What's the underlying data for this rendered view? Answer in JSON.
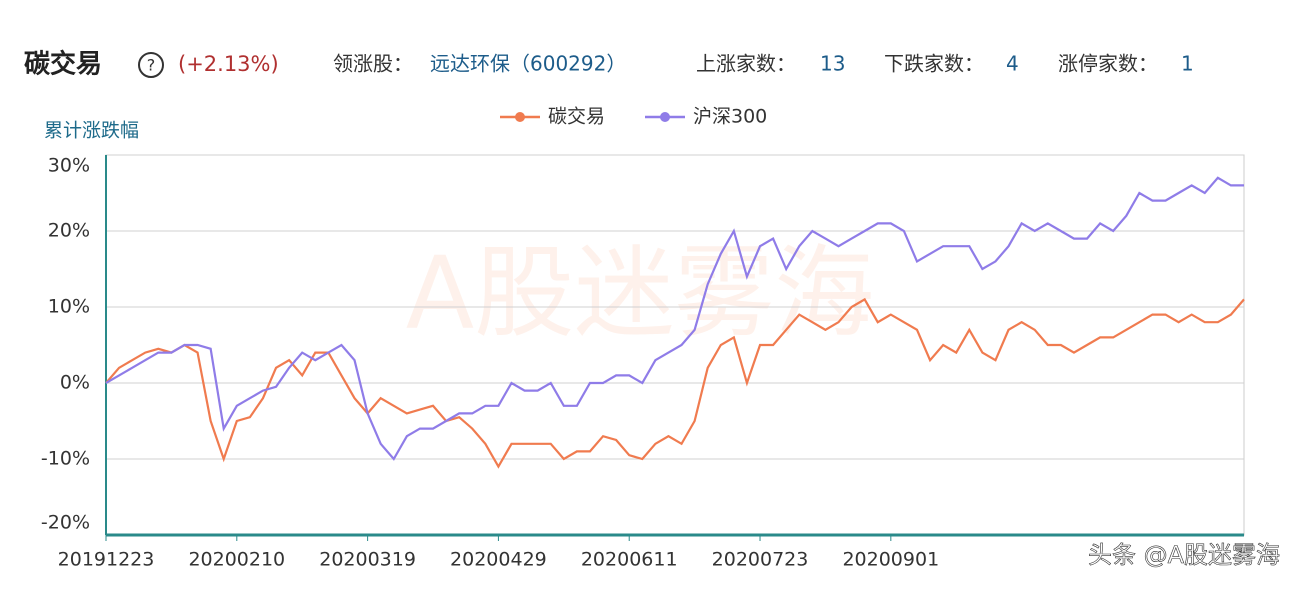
{
  "chart_data": {
    "type": "line",
    "title": "碳交易",
    "help": "?",
    "change": "(+2.13%)",
    "leader_label": "领涨股：",
    "leader": "远达环保（600292）",
    "up_label": "上涨家数：",
    "up": "13",
    "down_label": "下跌家数：",
    "down": "4",
    "limit_label": "涨停家数：",
    "limit": "1",
    "ylabel": "累计涨跌幅",
    "watermark": "A股迷雾海",
    "credit": "头条 @A股迷雾海",
    "x": [
      0,
      1,
      2,
      3,
      4,
      5,
      6,
      7,
      8,
      9,
      10,
      11,
      12,
      13,
      14,
      15,
      16,
      17,
      18,
      19,
      20,
      21,
      22,
      23,
      24,
      25,
      26,
      27,
      28,
      29,
      30,
      31,
      32,
      33,
      34,
      35,
      36,
      37,
      38,
      39,
      40,
      41,
      42,
      43,
      44,
      45,
      46,
      47,
      48,
      49,
      50,
      51,
      52,
      53,
      54,
      55,
      56,
      57,
      58,
      59,
      60,
      61,
      62,
      63,
      64,
      65,
      66,
      67,
      68,
      69,
      70,
      71,
      72,
      73,
      74,
      75,
      76,
      77,
      78,
      79,
      80,
      81,
      82,
      83,
      84,
      85,
      86,
      87
    ],
    "xlim": [
      0,
      87
    ],
    "xticks": [
      {
        "value": 0,
        "label": "20191223"
      },
      {
        "value": 10,
        "label": "20200210"
      },
      {
        "value": 20,
        "label": "20200319"
      },
      {
        "value": 30,
        "label": "20200429"
      },
      {
        "value": 40,
        "label": "20200611"
      },
      {
        "value": 50,
        "label": "20200723"
      },
      {
        "value": 60,
        "label": "20200901"
      }
    ],
    "ylim": [
      -20,
      30
    ],
    "yticks": [
      {
        "value": 30,
        "label": "30%"
      },
      {
        "value": 20,
        "label": "20%"
      },
      {
        "value": 10,
        "label": "10%"
      },
      {
        "value": 0,
        "label": "0%"
      },
      {
        "value": -10,
        "label": "-10%"
      },
      {
        "value": -20,
        "label": "-20%"
      }
    ],
    "grid": true,
    "series": [
      {
        "name": "碳交易",
        "color": "#f07b4f",
        "values": [
          0,
          2,
          3,
          4,
          4.5,
          4,
          5,
          4,
          -5,
          -10,
          -5,
          -4.5,
          -2,
          2,
          3,
          1,
          4,
          4,
          1,
          -2,
          -4,
          -2,
          -3,
          -4,
          -3.5,
          -3,
          -5,
          -4.5,
          -6,
          -8,
          -11,
          -8,
          -8,
          -8,
          -8,
          -10,
          -9,
          -9,
          -7,
          -7.5,
          -9.5,
          -10,
          -8,
          -7,
          -8,
          -5,
          2,
          5,
          6,
          0,
          5,
          5,
          7,
          9,
          8,
          7,
          8,
          10,
          11,
          8,
          9,
          8,
          7,
          3,
          5,
          4,
          7,
          4,
          3,
          7,
          8,
          7,
          5,
          5,
          4,
          5,
          6,
          6,
          7,
          8,
          9,
          9,
          8,
          9,
          8,
          8,
          9,
          11
        ]
      },
      {
        "name": "沪深300",
        "color": "#8f7ce8",
        "values": [
          0,
          1,
          2,
          3,
          4,
          4,
          5,
          5,
          4.5,
          -6,
          -3,
          -2,
          -1,
          -0.5,
          2,
          4,
          3,
          4,
          5,
          3,
          -4,
          -8,
          -10,
          -7,
          -6,
          -6,
          -5,
          -4,
          -4,
          -3,
          -3,
          0,
          -1,
          -1,
          0,
          -3,
          -3,
          0,
          0,
          1,
          1,
          0,
          3,
          4,
          5,
          7,
          13,
          17,
          20,
          14,
          18,
          19,
          15,
          18,
          20,
          19,
          18,
          19,
          20,
          21,
          21,
          20,
          16,
          17,
          18,
          18,
          18,
          15,
          16,
          18,
          21,
          20,
          21,
          20,
          19,
          19,
          21,
          20,
          22,
          25,
          24,
          24,
          25,
          26,
          25,
          27,
          26,
          26
        ]
      }
    ]
  }
}
